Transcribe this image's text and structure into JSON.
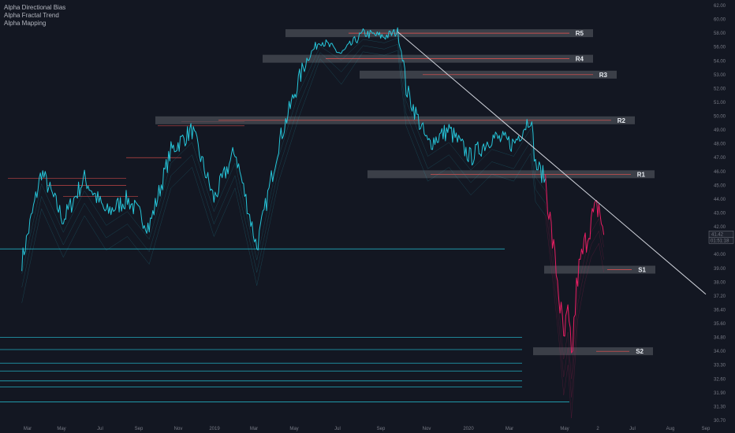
{
  "indicators": [
    "Alpha Directional Bias",
    "Alpha Fractal Trend",
    "Alpha Mapping"
  ],
  "colors": {
    "background": "#131722",
    "bull": "#26c6da",
    "bear": "#e91e63",
    "zone": "#4a4d56",
    "resistance_line": "#ef5350",
    "trendline": "#d1d4dc",
    "axis_text": "#787b86"
  },
  "chart_data": {
    "type": "line",
    "title": "",
    "xlabel": "",
    "ylabel": "",
    "x_ticks": [
      "Mar",
      "May",
      "Jul",
      "Sep",
      "Nov",
      "2019",
      "Mar",
      "May",
      "Jul",
      "Sep",
      "Nov",
      "2020",
      "Mar",
      "May",
      "2",
      "Jul",
      "Aug",
      "Sep"
    ],
    "y_ticks": [
      "62.00",
      "60.00",
      "58.00",
      "56.00",
      "54.00",
      "53.00",
      "52.00",
      "51.00",
      "50.00",
      "49.00",
      "48.00",
      "47.00",
      "46.00",
      "45.00",
      "44.00",
      "43.00",
      "42.00",
      "41.00",
      "40.00",
      "39.00",
      "38.00",
      "37.20",
      "36.40",
      "35.60",
      "34.80",
      "34.00",
      "33.30",
      "32.60",
      "31.90",
      "31.30",
      "30.70"
    ],
    "ylim": [
      30.7,
      62.0
    ],
    "y_scale": "log",
    "last_price": "41.42",
    "countdown": "01:51:18",
    "grid": false,
    "series": [
      {
        "color": "#26c6da",
        "x": [
          "2018-02-01",
          "2018-03-01",
          "2018-04-01",
          "2018-05-01",
          "2018-06-01",
          "2018-07-01",
          "2018-08-01",
          "2018-09-01",
          "2018-10-01",
          "2018-11-01",
          "2018-12-01",
          "2019-01-01",
          "2019-02-01",
          "2019-03-01",
          "2019-04-01",
          "2019-05-01",
          "2019-06-01",
          "2019-07-01",
          "2019-07-20",
          "2019-08-01",
          "2019-09-01",
          "2019-10-01",
          "2019-11-01",
          "2019-12-01",
          "2020-01-01",
          "2020-01-25",
          "2020-02-01",
          "2020-02-15"
        ],
        "values": [
          39.5,
          46.0,
          42.5,
          45.5,
          43.0,
          44.0,
          42.0,
          47.5,
          49.0,
          44.0,
          47.5,
          40.5,
          48.0,
          52.5,
          57.0,
          55.0,
          58.0,
          57.5,
          58.2,
          52.0,
          48.0,
          49.0,
          47.0,
          48.5,
          48.0,
          50.0,
          46.5,
          45.5
        ]
      },
      {
        "color": "#e91e63",
        "x": [
          "2020-02-15",
          "2020-02-25",
          "2020-03-05",
          "2020-03-12",
          "2020-03-18",
          "2020-03-23",
          "2020-04-01",
          "2020-04-10",
          "2020-04-20",
          "2020-05-01",
          "2020-05-08"
        ],
        "values": [
          45.5,
          41.0,
          37.5,
          34.5,
          36.0,
          33.5,
          38.5,
          40.5,
          42.5,
          43.5,
          41.42
        ]
      }
    ],
    "zones": [
      {
        "label": "R5",
        "price": 58.0
      },
      {
        "label": "R4",
        "price": 54.3
      },
      {
        "label": "R3",
        "price": 53.0
      },
      {
        "label": "R2",
        "price": 49.7
      },
      {
        "label": "R1",
        "price": 45.8
      },
      {
        "label": "S1",
        "price": 38.9
      },
      {
        "label": "S2",
        "price": 34.0
      }
    ],
    "trendline": {
      "from": {
        "x": "2019-07-20",
        "y": 58.2
      },
      "to": {
        "x": "2020-09-30",
        "y": 37.3
      }
    },
    "support_levels": [
      40.4,
      34.8,
      34.1,
      33.4,
      33.0,
      32.5,
      32.2,
      31.5
    ],
    "resistance_levels": [
      45.5,
      45.0,
      44.2,
      47.0,
      49.3,
      49.6
    ]
  }
}
